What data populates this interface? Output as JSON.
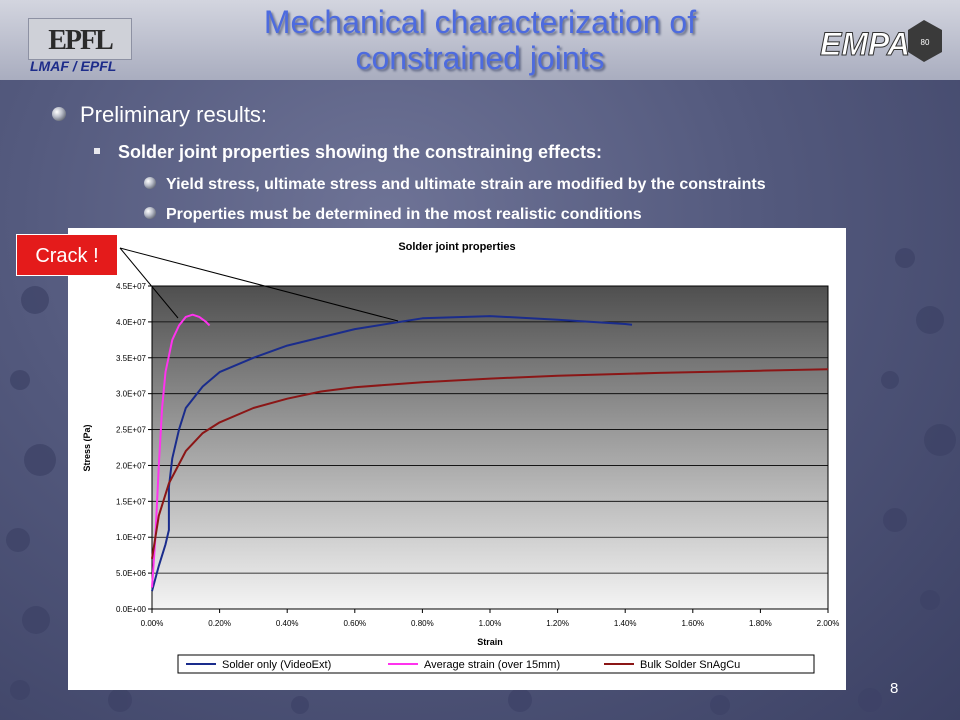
{
  "header": {
    "title_line1": "Mechanical characterization of",
    "title_line2": "constrained joints",
    "left_logo_caption": "LMAF / EPFL",
    "left_logo_text": "EPFL",
    "right_logo_text": "EMPA"
  },
  "bullets": {
    "level1": "Preliminary results:",
    "level2": "Solder joint properties showing the constraining effects:",
    "level3a": "Yield stress, ultimate stress and ultimate strain are modified by the constraints",
    "level3b": "Properties must be determined in the most realistic conditions"
  },
  "annotation": {
    "crack_label": "Crack !"
  },
  "page_number": "8",
  "chart_data": {
    "type": "line",
    "title": "Solder joint properties",
    "xlabel": "Strain",
    "ylabel": "Stress (Pa)",
    "xlim": [
      0,
      0.02
    ],
    "ylim": [
      0,
      45000000
    ],
    "x_ticks": [
      "0.00%",
      "0.20%",
      "0.40%",
      "0.60%",
      "0.80%",
      "1.00%",
      "1.20%",
      "1.40%",
      "1.60%",
      "1.80%",
      "2.00%"
    ],
    "y_ticks": [
      "0.0E+00",
      "5.0E+06",
      "1.0E+07",
      "1.5E+07",
      "2.0E+07",
      "2.5E+07",
      "3.0E+07",
      "3.5E+07",
      "4.0E+07",
      "4.5E+07"
    ],
    "grid": "horizontal",
    "legend": "bottom",
    "series": [
      {
        "name": "Solder only (VideoExt)",
        "color": "#1a2c8c",
        "x": [
          0.0,
          0.0002,
          0.0004,
          0.0005,
          0.0005,
          0.0006,
          0.0008,
          0.001,
          0.0015,
          0.002,
          0.003,
          0.004,
          0.006,
          0.008,
          0.01,
          0.012,
          0.014,
          0.0142
        ],
        "y": [
          2500000,
          6000000,
          9000000,
          11000000,
          17000000,
          21000000,
          25000000,
          28000000,
          31000000,
          33000000,
          35000000,
          36700000,
          39000000,
          40500000,
          40800000,
          40300000,
          39700000,
          39600000
        ]
      },
      {
        "name": "Average strain (over 15mm)",
        "color": "#ff33ee",
        "x": [
          0.0,
          0.0001,
          0.0002,
          0.0003,
          0.0004,
          0.0006,
          0.0008,
          0.001,
          0.0012,
          0.0014,
          0.0016,
          0.0017
        ],
        "y": [
          3000000,
          10000000,
          20000000,
          28000000,
          33000000,
          37500000,
          39500000,
          40700000,
          41000000,
          40700000,
          40000000,
          39500000
        ]
      },
      {
        "name": "Bulk Solder SnAgCu",
        "color": "#8b1616",
        "x": [
          0.0,
          0.0002,
          0.0005,
          0.001,
          0.0015,
          0.002,
          0.003,
          0.004,
          0.005,
          0.006,
          0.008,
          0.01,
          0.012,
          0.015,
          0.018,
          0.02
        ],
        "y": [
          7000000,
          13000000,
          17500000,
          22000000,
          24500000,
          26000000,
          28000000,
          29300000,
          30300000,
          30900000,
          31600000,
          32100000,
          32500000,
          32900000,
          33200000,
          33400000
        ]
      }
    ]
  }
}
